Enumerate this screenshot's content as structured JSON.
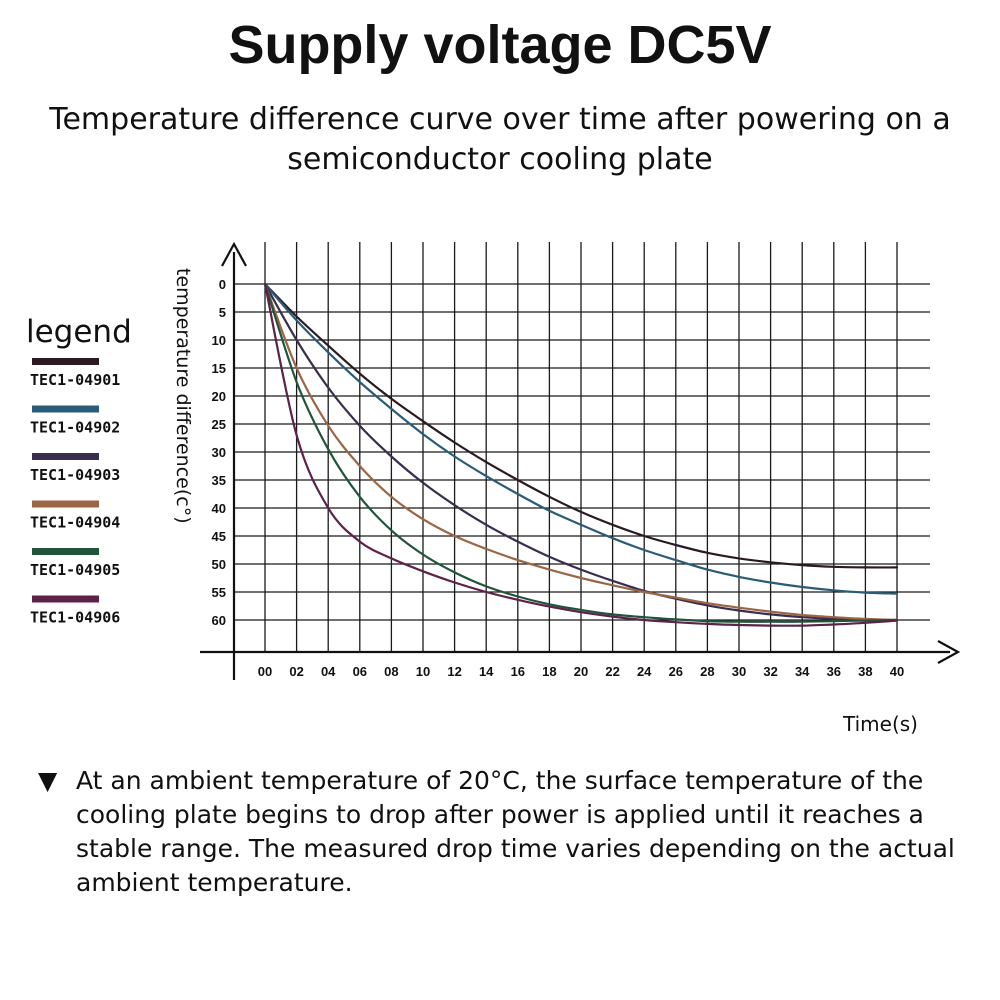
{
  "title": "Supply voltage DC5V",
  "subtitle": "Temperature difference curve over time after powering on a semiconductor cooling plate",
  "note": {
    "marker": "▼",
    "text": "At an ambient temperature of 20°C, the surface temperature of the cooling plate begins to drop after power is applied until it reaches a stable range. The measured drop time varies depending on the actual ambient temperature."
  },
  "chart_data": {
    "type": "line",
    "xlabel": "Time(s)",
    "ylabel": "temperature difference(c°)",
    "legend_title": "legend",
    "legend_position": "left",
    "xlim": [
      0,
      40
    ],
    "ylim": [
      0,
      60
    ],
    "y_inverted": true,
    "grid": true,
    "xticks": [
      "00",
      "02",
      "04",
      "06",
      "08",
      "10",
      "12",
      "14",
      "16",
      "18",
      "20",
      "22",
      "24",
      "26",
      "28",
      "30",
      "32",
      "34",
      "36",
      "38",
      "40"
    ],
    "yticks": [
      "0",
      "5",
      "10",
      "15",
      "20",
      "25",
      "30",
      "35",
      "40",
      "45",
      "50",
      "55",
      "60"
    ],
    "x": [
      0,
      2,
      4,
      6,
      8,
      10,
      12,
      14,
      16,
      18,
      20,
      22,
      24,
      26,
      28,
      30,
      32,
      34,
      36,
      38,
      40
    ],
    "series": [
      {
        "name": "TEC1-04901",
        "color": "#2b1a24",
        "values": [
          0,
          5.8,
          11,
          16,
          20.5,
          24.5,
          28.3,
          31.8,
          35,
          38,
          40.7,
          43,
          45,
          46.6,
          48,
          49,
          49.7,
          50.2,
          50.5,
          50.6,
          50.6
        ]
      },
      {
        "name": "TEC1-04902",
        "color": "#2a5c78",
        "values": [
          0,
          6.5,
          12.2,
          17.5,
          22.3,
          26.8,
          30.8,
          34.3,
          37.5,
          40.5,
          43,
          45.4,
          47.5,
          49.3,
          51,
          52.3,
          53.3,
          54.1,
          54.7,
          55.1,
          55.3
        ]
      },
      {
        "name": "TEC1-04903",
        "color": "#3a2e4e",
        "values": [
          0,
          10,
          18.5,
          25.3,
          30.8,
          35.5,
          39.5,
          43,
          46,
          48.7,
          51,
          53,
          54.8,
          56.2,
          57.4,
          58.3,
          59,
          59.5,
          59.8,
          60,
          60
        ]
      },
      {
        "name": "TEC1-04904",
        "color": "#9a6645",
        "values": [
          0,
          15,
          25.3,
          32.5,
          38,
          42,
          45,
          47.3,
          49.3,
          51,
          52.5,
          53.8,
          55,
          56,
          57,
          57.8,
          58.5,
          59.1,
          59.5,
          59.8,
          60
        ]
      },
      {
        "name": "TEC1-04905",
        "color": "#21553b",
        "values": [
          0,
          17.5,
          29.5,
          38,
          44,
          48.3,
          51.5,
          54,
          55.8,
          57.2,
          58.2,
          59,
          59.5,
          59.9,
          60.2,
          60.3,
          60.3,
          60.3,
          60.2,
          60.1,
          60
        ]
      },
      {
        "name": "TEC1-04906",
        "color": "#5e2148",
        "values": [
          0,
          27,
          40,
          46,
          49,
          51.3,
          53.3,
          55,
          56.4,
          57.6,
          58.6,
          59.4,
          60,
          60.4,
          60.7,
          60.9,
          61,
          61,
          60.8,
          60.5,
          60.1
        ]
      }
    ]
  }
}
